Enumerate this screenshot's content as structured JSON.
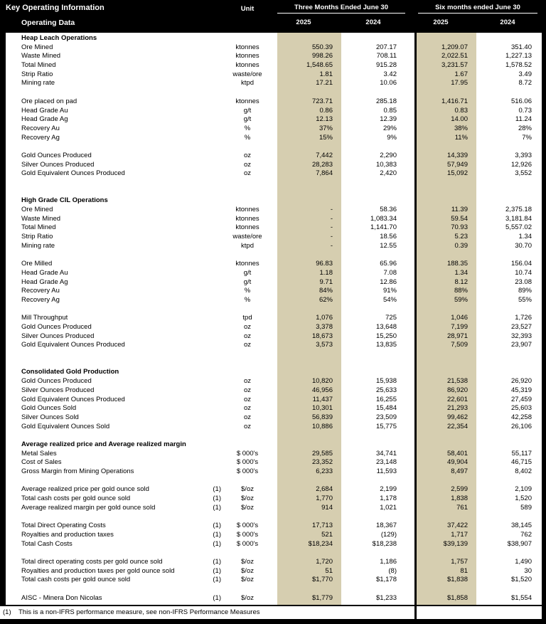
{
  "header": {
    "title": "Key Operating Information",
    "subtitle": "Operating Data",
    "unit_label": "Unit",
    "col_groups": [
      {
        "label": "Three Months Ended June 30",
        "years": [
          "2025",
          "2024"
        ]
      },
      {
        "label": "Six months ended June 30",
        "years": [
          "2025",
          "2024"
        ]
      }
    ]
  },
  "colors": {
    "highlight_2025": "#d6ceb0",
    "header_bg": "#000000",
    "header_text": "#ffffff",
    "body_bg": "#ffffff"
  },
  "rows": [
    {
      "type": "section",
      "label": "Heap Leach Operations"
    },
    {
      "type": "data",
      "label": "Ore Mined",
      "unit": "ktonnes",
      "values": [
        "550.39",
        "207.17",
        "1,209.07",
        "351.40"
      ]
    },
    {
      "type": "data",
      "label": "Waste Mined",
      "unit": "ktonnes",
      "values": [
        "998.26",
        "708.11",
        "2,022.51",
        "1,227.13"
      ]
    },
    {
      "type": "data",
      "label": "Total Mined",
      "unit": "ktonnes",
      "values": [
        "1,548.65",
        "915.28",
        "3,231.57",
        "1,578.52"
      ]
    },
    {
      "type": "data",
      "label": "Strip Ratio",
      "unit": "waste/ore",
      "values": [
        "1.81",
        "3.42",
        "1.67",
        "3.49"
      ]
    },
    {
      "type": "data",
      "label": "Mining rate",
      "unit": "ktpd",
      "values": [
        "17.21",
        "10.06",
        "17.95",
        "8.72"
      ]
    },
    {
      "type": "blank"
    },
    {
      "type": "data",
      "label": "Ore placed on pad",
      "unit": "ktonnes",
      "values": [
        "723.71",
        "285.18",
        "1,416.71",
        "516.06"
      ]
    },
    {
      "type": "data",
      "label": "Head Grade Au",
      "unit": "g/t",
      "values": [
        "0.86",
        "0.85",
        "0.83",
        "0.73"
      ]
    },
    {
      "type": "data",
      "label": "Head Grade Ag",
      "unit": "g/t",
      "values": [
        "12.13",
        "12.39",
        "14.00",
        "11.24"
      ]
    },
    {
      "type": "data",
      "label": "Recovery Au",
      "unit": "%",
      "values": [
        "37%",
        "29%",
        "38%",
        "28%"
      ]
    },
    {
      "type": "data",
      "label": "Recovery Ag",
      "unit": "%",
      "values": [
        "15%",
        "9%",
        "11%",
        "7%"
      ]
    },
    {
      "type": "blank"
    },
    {
      "type": "data",
      "label": "Gold Ounces Produced",
      "unit": "oz",
      "values": [
        "7,442",
        "2,290",
        "14,339",
        "3,393"
      ]
    },
    {
      "type": "data",
      "label": "Silver Ounces Produced",
      "unit": "oz",
      "values": [
        "28,283",
        "10,383",
        "57,949",
        "12,926"
      ]
    },
    {
      "type": "data",
      "label": "Gold Equivalent Ounces Produced",
      "unit": "oz",
      "values": [
        "7,864",
        "2,420",
        "15,092",
        "3,552"
      ]
    },
    {
      "type": "blank"
    },
    {
      "type": "blank"
    },
    {
      "type": "section",
      "label": "High Grade CIL Operations"
    },
    {
      "type": "data",
      "label": "Ore Mined",
      "unit": "ktonnes",
      "values": [
        "-",
        "58.36",
        "11.39",
        "2,375.18"
      ]
    },
    {
      "type": "data",
      "label": "Waste Mined",
      "unit": "ktonnes",
      "values": [
        "-",
        "1,083.34",
        "59.54",
        "3,181.84"
      ]
    },
    {
      "type": "data",
      "label": "Total Mined",
      "unit": "ktonnes",
      "values": [
        "-",
        "1,141.70",
        "70.93",
        "5,557.02"
      ]
    },
    {
      "type": "data",
      "label": "Strip Ratio",
      "unit": "waste/ore",
      "values": [
        "-",
        "18.56",
        "5.23",
        "1.34"
      ]
    },
    {
      "type": "data",
      "label": "Mining rate",
      "unit": "ktpd",
      "values": [
        "-",
        "12.55",
        "0.39",
        "30.70"
      ]
    },
    {
      "type": "blank"
    },
    {
      "type": "data",
      "label": "Ore Milled",
      "unit": "ktonnes",
      "values": [
        "96.83",
        "65.96",
        "188.35",
        "156.04"
      ]
    },
    {
      "type": "data",
      "label": "Head Grade Au",
      "unit": "g/t",
      "values": [
        "1.18",
        "7.08",
        "1.34",
        "10.74"
      ]
    },
    {
      "type": "data",
      "label": "Head Grade Ag",
      "unit": "g/t",
      "values": [
        "9.71",
        "12.86",
        "8.12",
        "23.08"
      ]
    },
    {
      "type": "data",
      "label": "Recovery Au",
      "unit": "%",
      "values": [
        "84%",
        "91%",
        "88%",
        "89%"
      ]
    },
    {
      "type": "data",
      "label": "Recovery Ag",
      "unit": "%",
      "values": [
        "62%",
        "54%",
        "59%",
        "55%"
      ]
    },
    {
      "type": "blank"
    },
    {
      "type": "data",
      "label": "Mill Throughput",
      "unit": "tpd",
      "values": [
        "1,076",
        "725",
        "1,046",
        "1,726"
      ]
    },
    {
      "type": "data",
      "label": "Gold Ounces Produced",
      "unit": "oz",
      "values": [
        "3,378",
        "13,648",
        "7,199",
        "23,527"
      ]
    },
    {
      "type": "data",
      "label": "Silver Ounces Produced",
      "unit": "oz",
      "values": [
        "18,673",
        "15,250",
        "28,971",
        "32,393"
      ]
    },
    {
      "type": "data",
      "label": "Gold Equivalent Ounces Produced",
      "unit": "oz",
      "values": [
        "3,573",
        "13,835",
        "7,509",
        "23,907"
      ]
    },
    {
      "type": "blank"
    },
    {
      "type": "blank"
    },
    {
      "type": "section",
      "label": "Consolidated Gold Production"
    },
    {
      "type": "data",
      "label": "Gold Ounces Produced",
      "unit": "oz",
      "values": [
        "10,820",
        "15,938",
        "21,538",
        "26,920"
      ]
    },
    {
      "type": "data",
      "label": "Silver Ounces Produced",
      "unit": "oz",
      "values": [
        "46,956",
        "25,633",
        "86,920",
        "45,319"
      ]
    },
    {
      "type": "data",
      "label": "Gold Equivalent Ounces Produced",
      "unit": "oz",
      "values": [
        "11,437",
        "16,255",
        "22,601",
        "27,459"
      ]
    },
    {
      "type": "data",
      "label": "Gold Ounces Sold",
      "unit": "oz",
      "values": [
        "10,301",
        "15,484",
        "21,293",
        "25,603"
      ]
    },
    {
      "type": "data",
      "label": "Silver Ounces Sold",
      "unit": "oz",
      "values": [
        "56,839",
        "23,509",
        "99,462",
        "42,258"
      ]
    },
    {
      "type": "data",
      "label": "Gold Equivalent Ounces Sold",
      "unit": "oz",
      "values": [
        "10,886",
        "15,775",
        "22,354",
        "26,106"
      ]
    },
    {
      "type": "blank"
    },
    {
      "type": "section",
      "label": "Average realized price and Average realized margin"
    },
    {
      "type": "data",
      "label": "Metal Sales",
      "unit": "$ 000's",
      "values": [
        "29,585",
        "34,741",
        "58,401",
        "55,117"
      ]
    },
    {
      "type": "data",
      "label": "Cost of Sales",
      "unit": "$ 000's",
      "values": [
        "23,352",
        "23,148",
        "49,904",
        "46,715"
      ]
    },
    {
      "type": "data",
      "label": "Gross Margin from Mining Operations",
      "unit": "$ 000's",
      "values": [
        "6,233",
        "11,593",
        "8,497",
        "8,402"
      ]
    },
    {
      "type": "blank"
    },
    {
      "type": "data",
      "label": "Average realized price per gold ounce sold",
      "fn": "(1)",
      "unit": "$/oz",
      "values": [
        "2,684",
        "2,199",
        "2,599",
        "2,109"
      ]
    },
    {
      "type": "data",
      "label": "Total cash costs per gold ounce sold",
      "fn": "(1)",
      "unit": "$/oz",
      "values": [
        "1,770",
        "1,178",
        "1,838",
        "1,520"
      ]
    },
    {
      "type": "data",
      "label": "Average realized margin per gold ounce sold",
      "fn": "(1)",
      "unit": "$/oz",
      "values": [
        "914",
        "1,021",
        "761",
        "589"
      ]
    },
    {
      "type": "blank"
    },
    {
      "type": "data",
      "label": "Total Direct Operating Costs",
      "fn": "(1)",
      "unit": "$ 000's",
      "values": [
        "17,713",
        "18,367",
        "37,422",
        "38,145"
      ]
    },
    {
      "type": "data",
      "label": "Royalties and production taxes",
      "fn": "(1)",
      "unit": "$ 000's",
      "values": [
        "521",
        "(129)",
        "1,717",
        "762"
      ]
    },
    {
      "type": "data",
      "label": "Total Cash Costs",
      "fn": "(1)",
      "unit": "$ 000's",
      "values": [
        "$18,234",
        "$18,238",
        "$39,139",
        "$38,907"
      ]
    },
    {
      "type": "blank"
    },
    {
      "type": "data",
      "label": "Total direct operating costs per gold ounce sold",
      "fn": "(1)",
      "unit": "$/oz",
      "values": [
        "1,720",
        "1,186",
        "1,757",
        "1,490"
      ]
    },
    {
      "type": "data",
      "label": "Royalties and production taxes per gold ounce sold",
      "fn": "(1)",
      "unit": "$/oz",
      "values": [
        "51",
        "(8)",
        "81",
        "30"
      ]
    },
    {
      "type": "data",
      "label": "Total cash costs per gold ounce sold",
      "fn": "(1)",
      "unit": "$/oz",
      "values": [
        "$1,770",
        "$1,178",
        "$1,838",
        "$1,520"
      ]
    },
    {
      "type": "blank"
    },
    {
      "type": "data",
      "label": "AISC - Minera Don Nicolas",
      "fn": "(1)",
      "unit": "$/oz",
      "values": [
        "$1,779",
        "$1,233",
        "$1,858",
        "$1,554"
      ]
    }
  ],
  "footnote": {
    "marker": "(1)",
    "text": "This is a non-IFRS performance measure, see non-IFRS Performance Measures"
  }
}
